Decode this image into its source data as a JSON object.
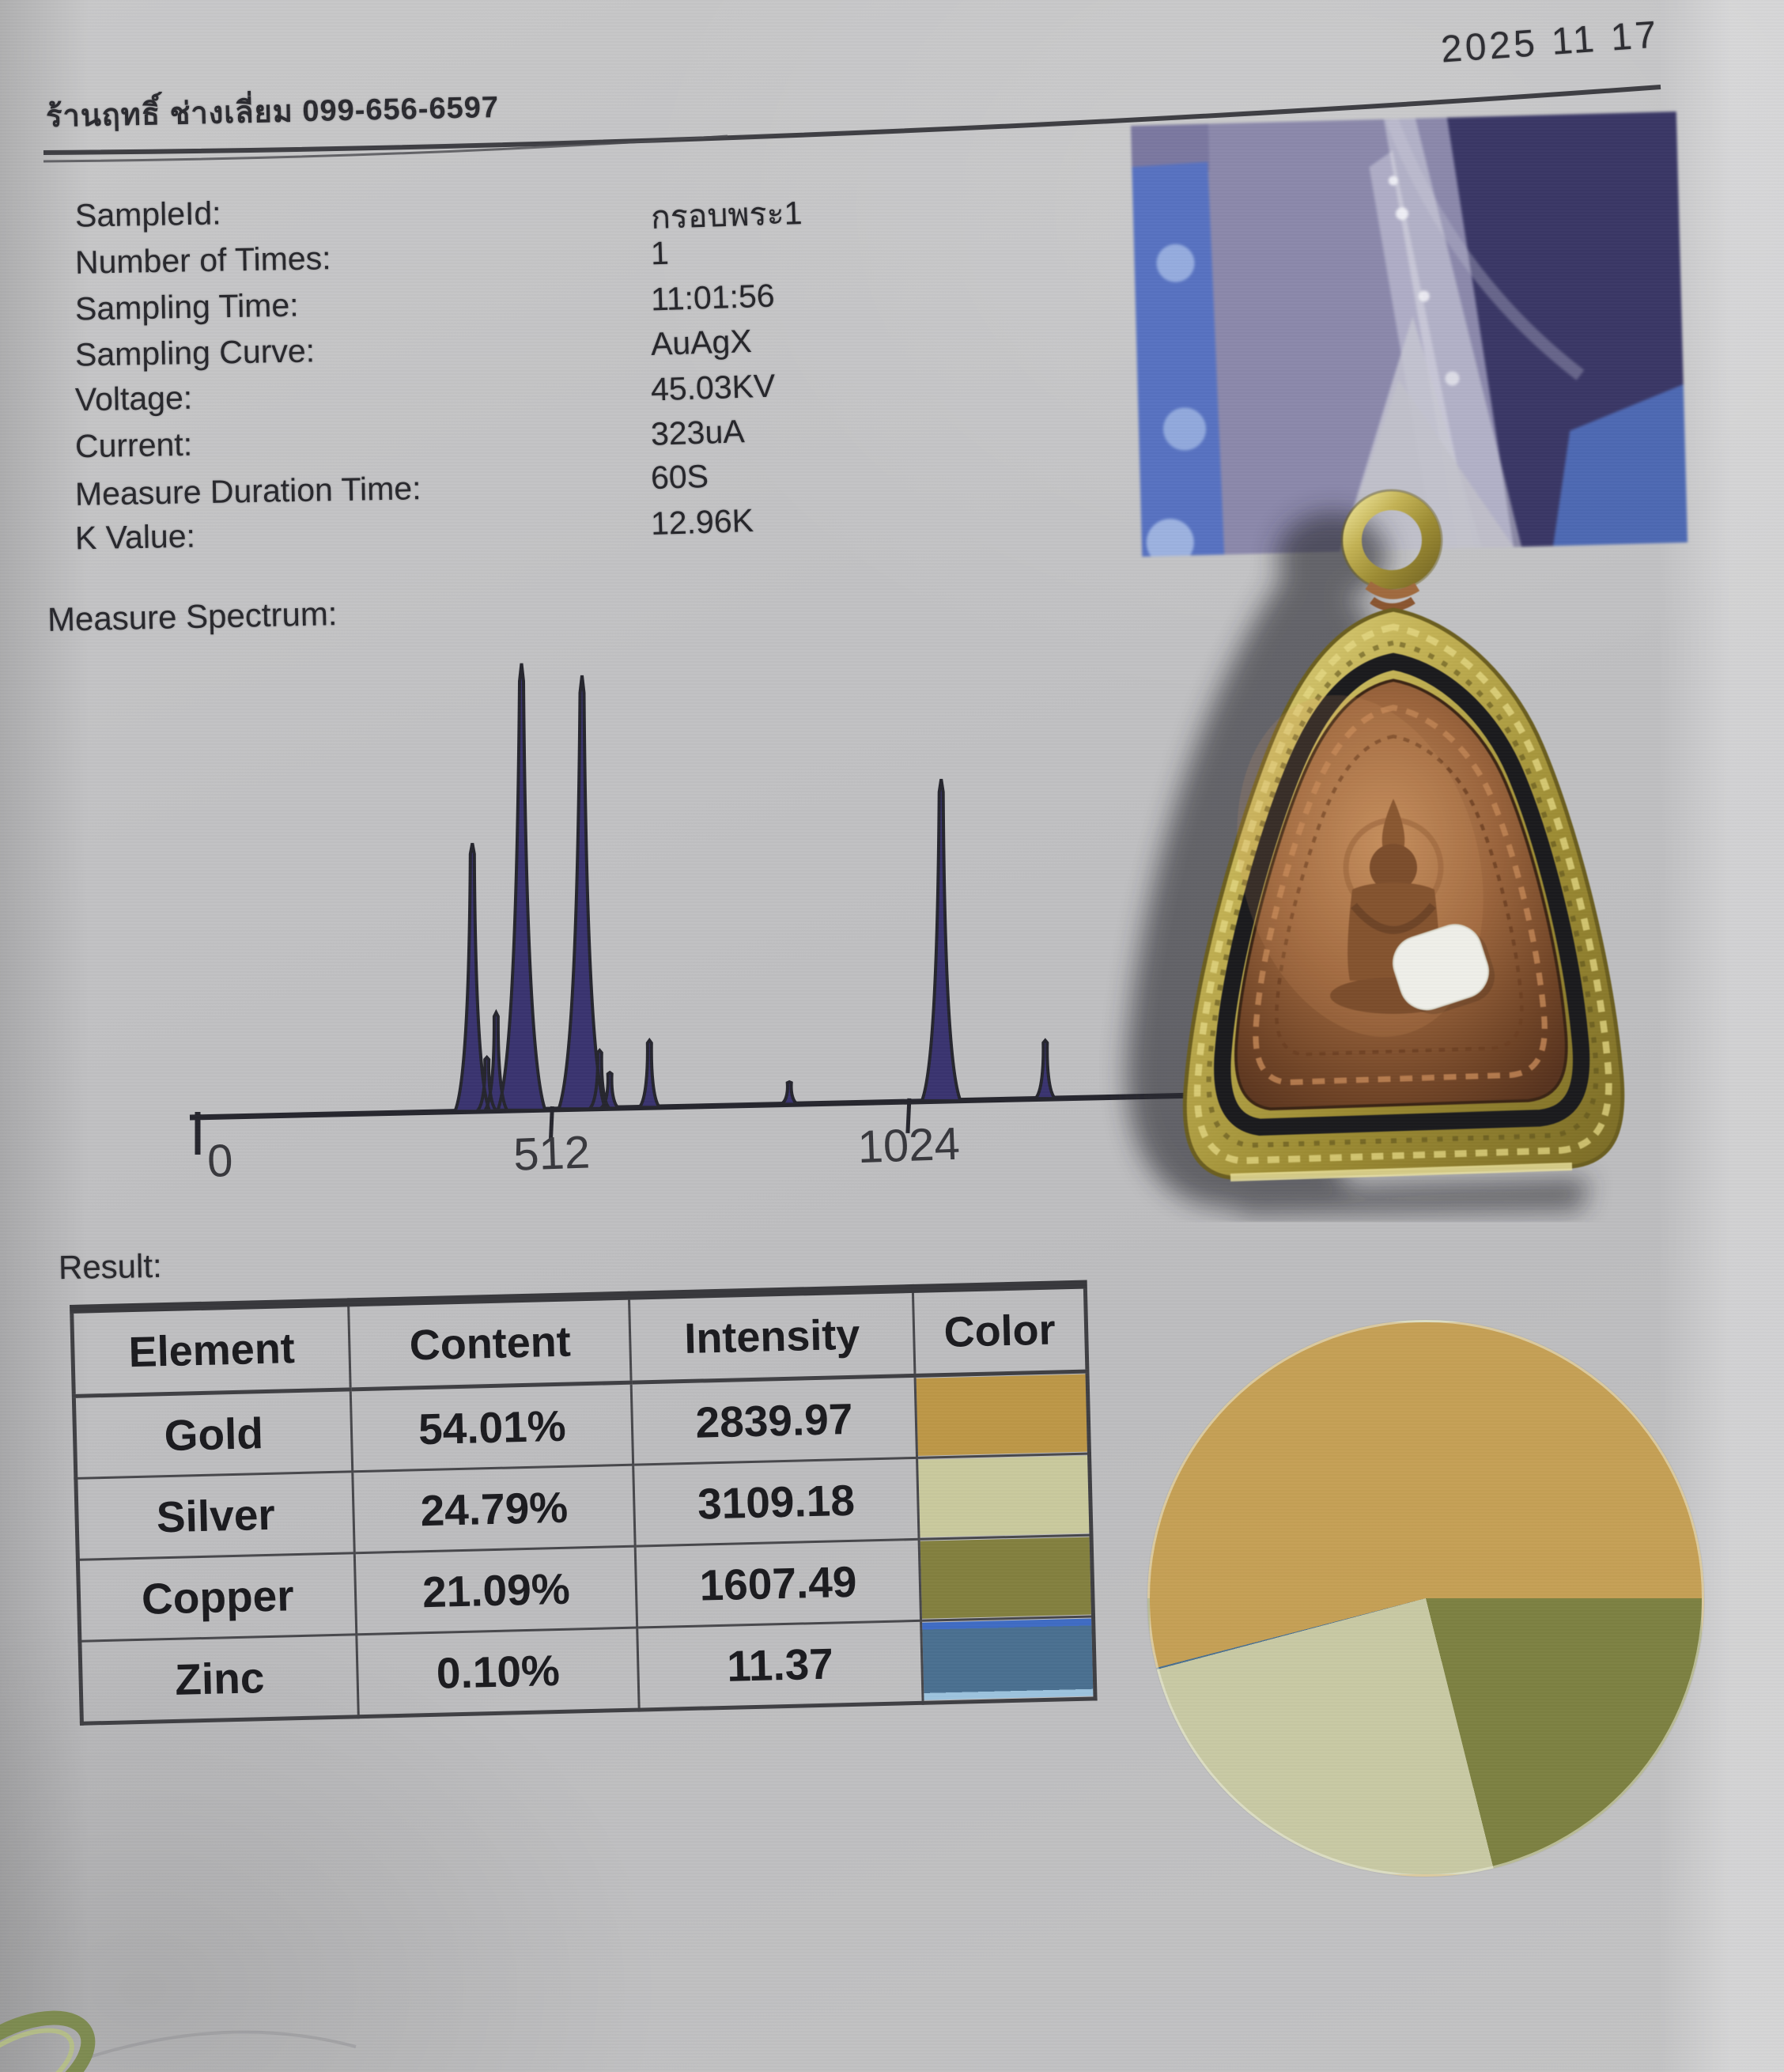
{
  "header": {
    "shop_line": "ร้านฤทธิ์ ช่างเลี่ยม 099-656-6597",
    "date": "2025 11 17"
  },
  "info": {
    "fields": [
      {
        "label": "SampleId:",
        "value": "กรอบพระ1"
      },
      {
        "label": "Number of Times:",
        "value": "1"
      },
      {
        "label": "Sampling Time:",
        "value": "11:01:56"
      },
      {
        "label": "Sampling Curve:",
        "value": "AuAgX"
      },
      {
        "label": "Voltage:",
        "value": "45.03KV"
      },
      {
        "label": "Current:",
        "value": "323uA"
      },
      {
        "label": "Measure Duration Time:",
        "value": "60S"
      },
      {
        "label": "K Value:",
        "value": "12.96K"
      }
    ]
  },
  "result": {
    "label": "Result:",
    "table": {
      "headers": [
        "Element",
        "Content",
        "Intensity",
        "Color"
      ],
      "rows": [
        {
          "element": "Gold",
          "content": "54.01%",
          "intensity": "2839.97",
          "color": "#bd9747"
        },
        {
          "element": "Silver",
          "content": "24.79%",
          "intensity": "3109.18",
          "color": "#c9c99d"
        },
        {
          "element": "Copper",
          "content": "21.09%",
          "intensity": "1607.49",
          "color": "#83803f"
        },
        {
          "element": "Zinc",
          "content": "0.10%",
          "intensity": "11.37",
          "color": "#4a7090",
          "stripe_top": "#3f6cc4",
          "stripe_bottom": "#9cc3de"
        }
      ]
    }
  },
  "chart_data": [
    {
      "type": "area",
      "title": "Measure Spectrum:",
      "xlabel": "",
      "ylabel": "",
      "x_ticks": [
        0,
        512,
        1024
      ],
      "x_range": [
        0,
        1450
      ],
      "grid": false,
      "legend": "none",
      "fill_color": "#3a3470",
      "line_color": "#26262e",
      "peaks_channel_relheight": [
        {
          "x": 392,
          "h": 0.6
        },
        {
          "x": 414,
          "h": 0.12
        },
        {
          "x": 428,
          "h": 0.22
        },
        {
          "x": 466,
          "h": 1.0
        },
        {
          "x": 556,
          "h": 0.97
        },
        {
          "x": 582,
          "h": 0.13
        },
        {
          "x": 597,
          "h": 0.08
        },
        {
          "x": 655,
          "h": 0.15
        },
        {
          "x": 856,
          "h": 0.05
        },
        {
          "x": 1068,
          "h": 0.72
        },
        {
          "x": 1210,
          "h": 0.13
        }
      ]
    },
    {
      "type": "pie",
      "title": "",
      "slices": [
        {
          "name": "Gold",
          "value": 54.01,
          "color": "#c5a055"
        },
        {
          "name": "Silver",
          "value": 24.79,
          "color": "#c8c9a4"
        },
        {
          "name": "Copper",
          "value": 21.09,
          "color": "#7d8142"
        },
        {
          "name": "Zinc",
          "value": 0.1,
          "color": "#4a7090"
        }
      ],
      "start_angle_deg": 90,
      "clockwise_from_start": [
        "Copper",
        "Silver",
        "Zinc",
        "Gold"
      ],
      "legend_position": "result-table-color-column",
      "labels_shown": false
    }
  ]
}
